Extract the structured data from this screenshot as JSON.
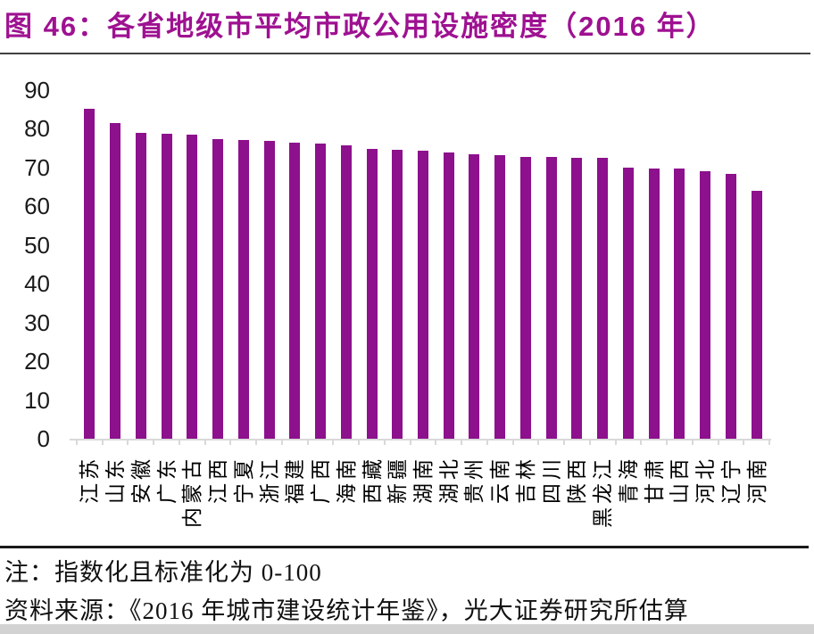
{
  "title": "图 46：各省地级市平均市政公用设施密度（2016 年）",
  "notes": {
    "note": "注：指数化且标准化为 0-100",
    "source": "资料来源：《2016 年城市建设统计年鉴》，光大证券研究所估算"
  },
  "colors": {
    "title": "#9E1191",
    "bar": "#8D108D",
    "axis": "#D9D9D9",
    "title_divider": "#404040",
    "footnote_divider": "#1A1A1A",
    "bottom_strip": "#D2D2D2"
  },
  "chart_data": {
    "type": "bar",
    "title": "各省地级市平均市政公用设施密度（2016 年）",
    "categories": [
      "江苏",
      "山东",
      "安徽",
      "广东",
      "内蒙古",
      "江西",
      "宁夏",
      "浙江",
      "福建",
      "广西",
      "海南",
      "西藏",
      "新疆",
      "湖南",
      "湖北",
      "贵州",
      "云南",
      "吉林",
      "四川",
      "陕西",
      "黑龙江",
      "青海",
      "甘肃",
      "山西",
      "河北",
      "辽宁",
      "河南"
    ],
    "values": [
      85.0,
      81.4,
      78.8,
      78.6,
      78.4,
      77.2,
      77.0,
      76.9,
      76.3,
      76.0,
      75.6,
      74.8,
      74.5,
      74.3,
      73.9,
      73.4,
      73.1,
      72.7,
      72.6,
      72.5,
      72.4,
      70.0,
      69.7,
      69.6,
      68.9,
      68.4,
      64.0
    ],
    "xlabel": "",
    "ylabel": "",
    "ylim": [
      0,
      90
    ],
    "yticks": [
      0,
      10,
      20,
      30,
      40,
      50,
      60,
      70,
      80,
      90
    ],
    "grid": false,
    "legend": "none",
    "bar_color": "#8D108D"
  }
}
